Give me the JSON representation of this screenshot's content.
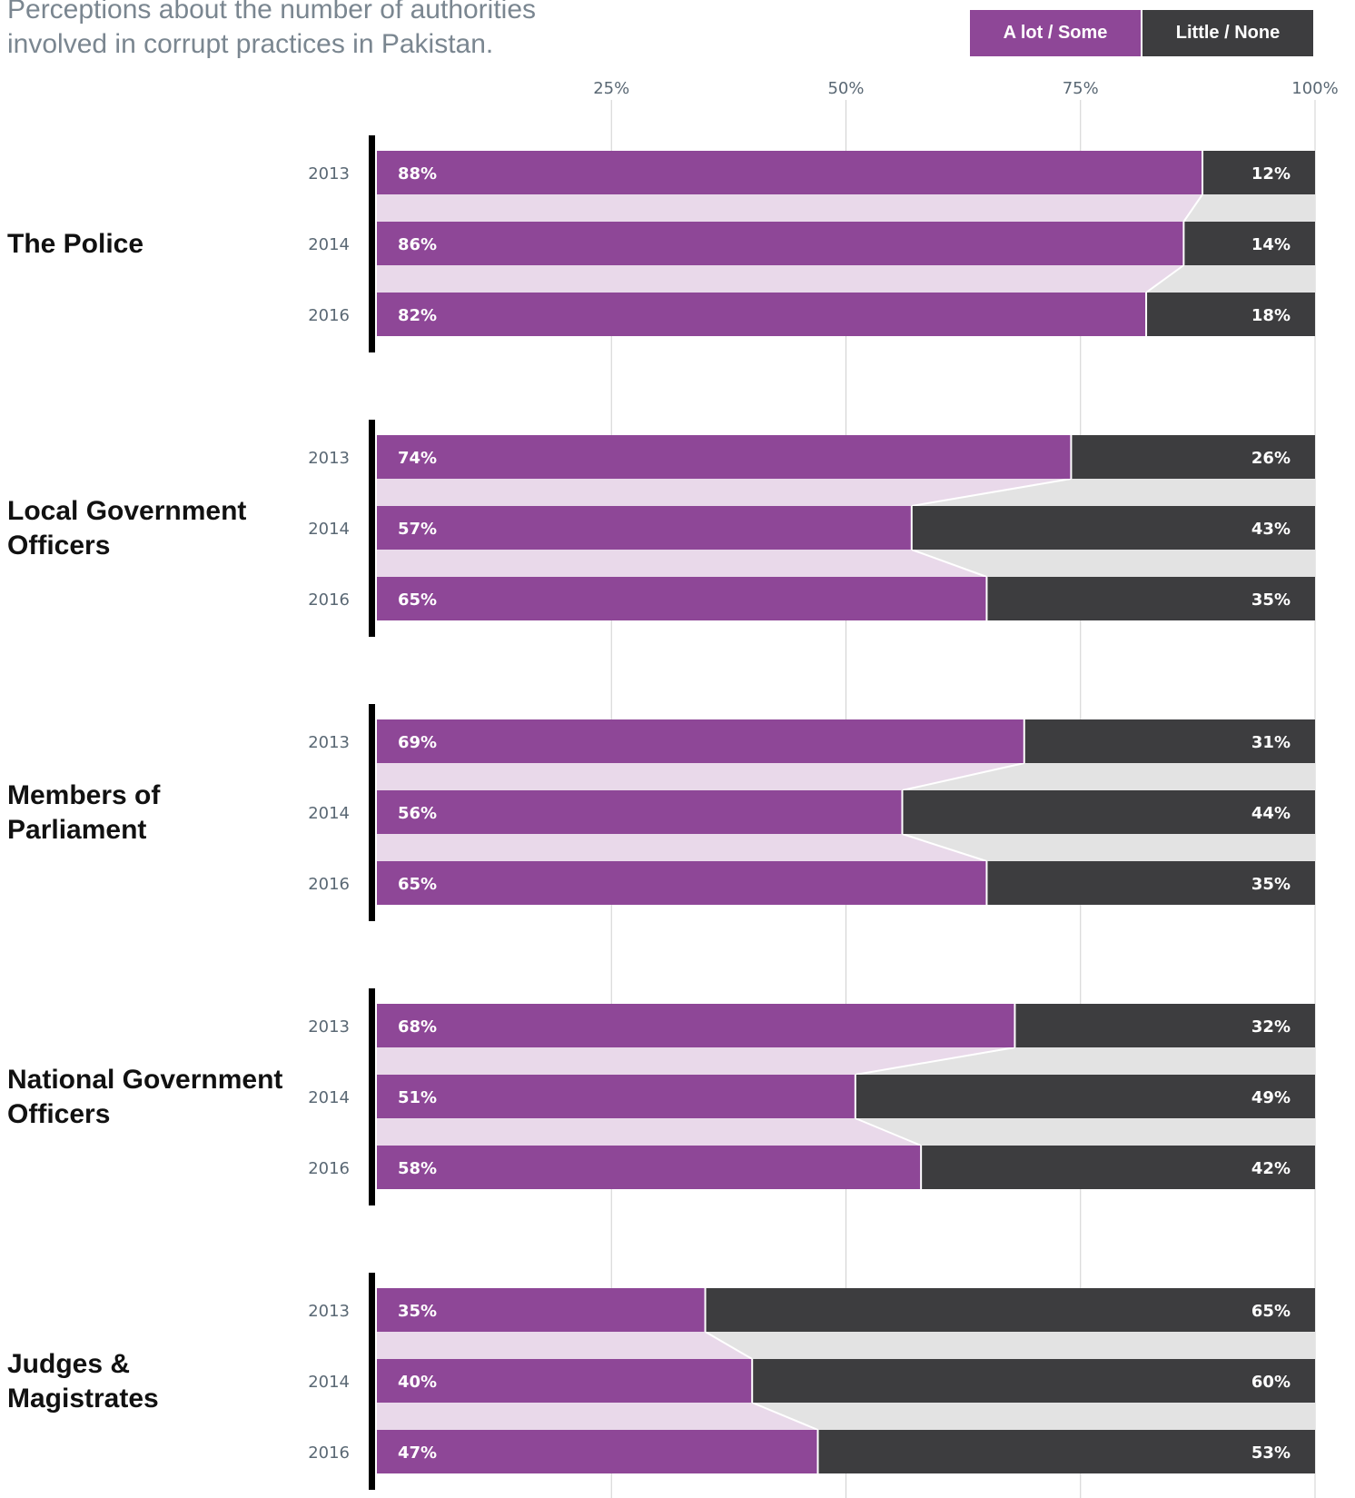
{
  "subtitle": "Perceptions about the number of authorities involved in corrupt practices in Pakistan.",
  "legend": {
    "a_lot_some": "A lot / Some",
    "little_none": "Little / None"
  },
  "colors": {
    "a_lot_some": "#8e4797",
    "little_none": "#3d3d3f",
    "a_lot_some_band": "#e9d9ea",
    "little_none_band": "#e3e3e3",
    "grid": "#d0d0d0",
    "category_rule": "#000000"
  },
  "chart_data": {
    "type": "bar",
    "orientation": "horizontal",
    "stacked": "100%",
    "xlim": [
      0,
      100
    ],
    "x_ticks": [
      "25%",
      "50%",
      "75%",
      "100%"
    ],
    "x_tick_values": [
      25,
      50,
      75,
      100
    ],
    "grid": true,
    "legend_position": "top-right",
    "series_names": [
      "A lot / Some",
      "Little / None"
    ],
    "groups": [
      {
        "category": "The Police",
        "label_lines": [
          "The Police"
        ],
        "rows": [
          {
            "year": "2013",
            "a_lot_some": 88,
            "little_none": 12
          },
          {
            "year": "2014",
            "a_lot_some": 86,
            "little_none": 14
          },
          {
            "year": "2016",
            "a_lot_some": 82,
            "little_none": 18
          }
        ]
      },
      {
        "category": "Local Government Officers",
        "label_lines": [
          "Local Government",
          "Officers"
        ],
        "rows": [
          {
            "year": "2013",
            "a_lot_some": 74,
            "little_none": 26
          },
          {
            "year": "2014",
            "a_lot_some": 57,
            "little_none": 43
          },
          {
            "year": "2016",
            "a_lot_some": 65,
            "little_none": 35
          }
        ]
      },
      {
        "category": "Members of Parliament",
        "label_lines": [
          "Members of",
          "Parliament"
        ],
        "rows": [
          {
            "year": "2013",
            "a_lot_some": 69,
            "little_none": 31
          },
          {
            "year": "2014",
            "a_lot_some": 56,
            "little_none": 44
          },
          {
            "year": "2016",
            "a_lot_some": 65,
            "little_none": 35
          }
        ]
      },
      {
        "category": "National Government Officers",
        "label_lines": [
          "National Government",
          "Officers"
        ],
        "rows": [
          {
            "year": "2013",
            "a_lot_some": 68,
            "little_none": 32
          },
          {
            "year": "2014",
            "a_lot_some": 51,
            "little_none": 49
          },
          {
            "year": "2016",
            "a_lot_some": 58,
            "little_none": 42
          }
        ]
      },
      {
        "category": "Judges & Magistrates",
        "label_lines": [
          "Judges &",
          "Magistrates"
        ],
        "rows": [
          {
            "year": "2013",
            "a_lot_some": 35,
            "little_none": 65
          },
          {
            "year": "2014",
            "a_lot_some": 40,
            "little_none": 60
          },
          {
            "year": "2016",
            "a_lot_some": 47,
            "little_none": 53
          }
        ]
      }
    ]
  }
}
